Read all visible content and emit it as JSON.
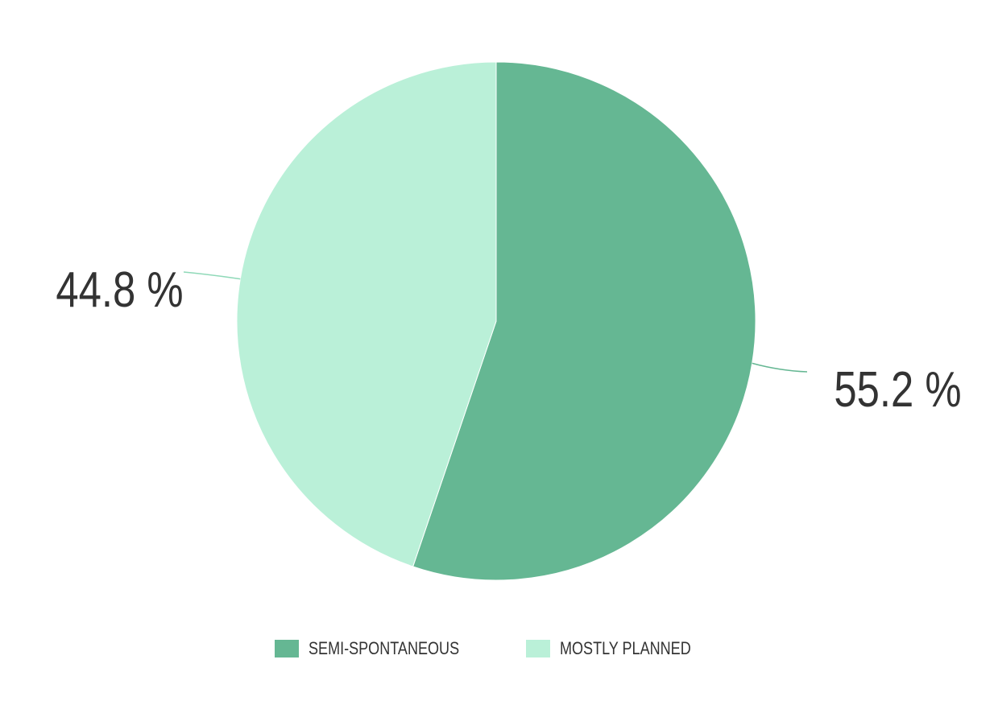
{
  "chart_data": {
    "type": "pie",
    "start_angle_deg": 0,
    "direction": "clockwise",
    "slices": [
      {
        "name": "SEMI-SPONTANEOUS",
        "value": 55.2,
        "label": "55.2 %",
        "color": "#65b793"
      },
      {
        "name": "MOSTLY PLANNED",
        "value": 44.8,
        "label": "44.8 %",
        "color": "#baf0d8"
      }
    ],
    "legend": {
      "placement": "bottom-center",
      "entries": [
        "SEMI-SPONTANEOUS",
        "MOSTLY PLANNED"
      ]
    }
  }
}
